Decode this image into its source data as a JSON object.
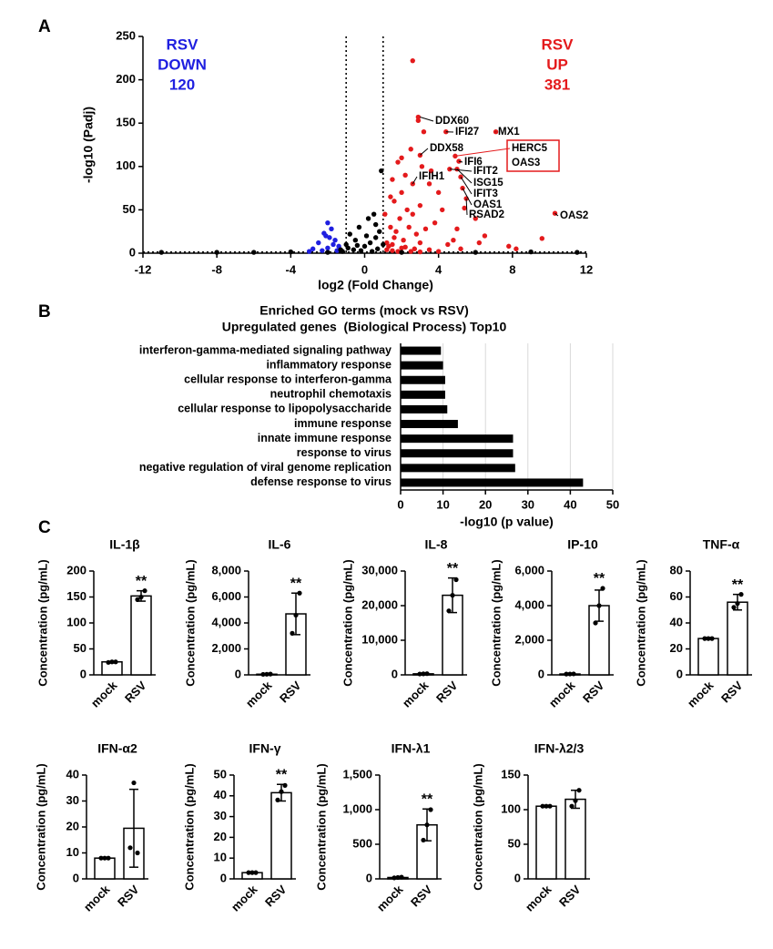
{
  "panel_labels": [
    "A",
    "B",
    "C"
  ],
  "chart_data": [
    {
      "type": "scatter",
      "xlabel": "log2 (Fold Change)",
      "ylabel": "-log10 (Padj)",
      "xlim": [
        -12,
        12
      ],
      "ylim": [
        0,
        250
      ],
      "xticks": [
        -12,
        -8,
        -4,
        0,
        4,
        8,
        12
      ],
      "yticks": [
        0,
        50,
        100,
        150,
        200,
        250
      ],
      "thresholds": {
        "x": [
          -1,
          1
        ],
        "y": 1.3
      },
      "series": [
        {
          "color": "#1f1fe0",
          "x": [
            -2.2,
            -2.0,
            -1.8,
            -2.5,
            -2.8,
            -1.6,
            -1.4,
            -2.0,
            -1.5,
            -1.9,
            -2.3,
            -3.0,
            -2.1,
            -1.7
          ],
          "values": [
            23,
            35,
            28,
            12,
            5,
            15,
            8,
            6,
            3,
            18,
            3,
            2,
            20,
            10
          ]
        },
        {
          "color": "#e41a1c",
          "x": [
            2.6,
            2.9,
            2.9,
            3.2,
            4.4,
            7.1,
            3.0,
            4.9,
            5.1,
            4.6,
            5.0,
            5.2,
            5.3,
            5.5,
            5.4,
            10.3,
            3.1,
            2.5,
            1.8,
            1.5,
            2.2,
            3.5,
            4.0,
            2.0,
            1.6,
            3.0,
            4.2,
            2.6,
            1.9,
            6.0,
            3.8,
            1.4,
            2.4,
            5.0,
            6.5,
            9.6,
            1.6,
            2.1,
            3.0,
            4.5,
            1.3,
            2.0,
            2.7,
            3.5,
            1.5,
            5.2,
            7.8,
            1.2,
            1.7,
            2.8,
            3.3,
            4.8,
            2.3,
            1.1,
            1.4,
            3.6,
            2.0,
            6.2,
            8.2,
            1.8,
            2.5,
            3.0,
            4.0,
            2.6,
            1.2,
            1.5,
            2.2
          ],
          "values": [
            222,
            157,
            153,
            140,
            140,
            140,
            113,
            112,
            106,
            97,
            97,
            88,
            75,
            63,
            52,
            46,
            100,
            120,
            105,
            85,
            90,
            80,
            70,
            70,
            60,
            55,
            50,
            45,
            40,
            40,
            35,
            30,
            30,
            28,
            20,
            17,
            18,
            15,
            12,
            10,
            8,
            6,
            5,
            4,
            3,
            5,
            8,
            12,
            25,
            22,
            28,
            15,
            50,
            45,
            65,
            95,
            110,
            12,
            5,
            2,
            2,
            1.5,
            2,
            80,
            4,
            10,
            7
          ]
        },
        {
          "color": "#000000",
          "x": [
            0.9,
            0.5,
            0.2,
            -0.3,
            0.8,
            -0.8,
            0.6,
            -0.5,
            0.3,
            -1.0,
            0.0,
            0.7,
            -0.6,
            -0.2,
            0.4,
            -1.2,
            1.0,
            -4,
            -8,
            -11,
            6,
            9,
            11.5,
            -6,
            2,
            -2,
            -0.9,
            0.1,
            -0.4,
            0.6,
            -1.3
          ],
          "values": [
            95,
            45,
            40,
            30,
            25,
            22,
            18,
            15,
            12,
            10,
            8,
            5,
            4,
            3,
            2,
            2,
            10,
            1.5,
            1,
            1,
            1,
            1.5,
            1,
            1,
            1,
            1,
            6,
            20,
            9,
            33,
            4
          ]
        }
      ],
      "group_labels": [
        {
          "lines": [
            "RSV",
            "DOWN"
          ],
          "count": 120,
          "color": "#1f1fe0"
        },
        {
          "lines": [
            "RSV",
            "UP"
          ],
          "count": 381,
          "color": "#e41a1c"
        }
      ],
      "gene_labels": [
        {
          "text": "DDX60",
          "x": 3.0,
          "y": 157
        },
        {
          "text": "IFI27",
          "x": 4.4,
          "y": 140
        },
        {
          "text": "MX1",
          "x": 7.1,
          "y": 140
        },
        {
          "text": "DDX58",
          "x": 3.0,
          "y": 113
        },
        {
          "text": "HERC5",
          "x": 4.9,
          "y": 112
        },
        {
          "text": "OAS3",
          "x": 4.9,
          "y": 112
        },
        {
          "text": "IFI6",
          "x": 5.1,
          "y": 106
        },
        {
          "text": "IFIT2",
          "x": 4.6,
          "y": 97
        },
        {
          "text": "ISG15",
          "x": 5.0,
          "y": 97
        },
        {
          "text": "IFIT3",
          "x": 5.2,
          "y": 88
        },
        {
          "text": "OAS1",
          "x": 5.3,
          "y": 75
        },
        {
          "text": "RSAD2",
          "x": 5.5,
          "y": 63
        },
        {
          "text": "OAS2",
          "x": 10.3,
          "y": 46
        },
        {
          "text": "IFIH1",
          "x": 2.6,
          "y": 80
        }
      ]
    },
    {
      "type": "barh",
      "title": [
        "Enriched GO terms (mock vs RSV)",
        "Upregulated genes  (Biological Process) Top10"
      ],
      "xlabel": "-log10 (p value)",
      "color": "#000000",
      "grid": true,
      "categories": [
        "interferon-gamma-mediated signaling pathway",
        "inflammatory response",
        "cellular response to interferon-gamma",
        "neutrophil chemotaxis",
        "cellular response to lipopolysaccharide",
        "immune response",
        "innate immune response",
        "response to virus",
        "negative regulation of viral genome replication",
        "defense response to virus"
      ],
      "values": [
        9.5,
        10,
        10.5,
        10.5,
        11,
        13.5,
        26.5,
        26.5,
        27,
        43
      ],
      "xlim": [
        0,
        50
      ],
      "xticks": [
        0,
        10,
        20,
        30,
        40,
        50
      ]
    },
    {
      "type": "bar",
      "title": "IL-1β",
      "ylabel": "Concentration (pg/mL)",
      "categories": [
        "mock",
        "RSV"
      ],
      "values": [
        25,
        152
      ],
      "error": [
        1,
        10
      ],
      "points": [
        [
          24,
          25,
          25
        ],
        [
          145,
          150,
          162
        ]
      ],
      "significance": [
        null,
        "**"
      ],
      "ylim": [
        0,
        200
      ],
      "yticks": [
        0,
        50,
        100,
        150,
        200
      ]
    },
    {
      "type": "bar",
      "title": "IL-6",
      "ylabel": "Concentration (pg/mL)",
      "categories": [
        "mock",
        "RSV"
      ],
      "values": [
        50,
        4700
      ],
      "error": [
        20,
        1600
      ],
      "points": [
        [
          40,
          50,
          60
        ],
        [
          3200,
          4600,
          6300
        ]
      ],
      "significance": [
        null,
        "**"
      ],
      "ylim": [
        0,
        8000
      ],
      "yticks": [
        0,
        {
          "value": 2000,
          "label": "2,000"
        },
        {
          "value": 4000,
          "label": "4,000"
        },
        {
          "value": 6000,
          "label": "6,000"
        },
        {
          "value": 8000,
          "label": "8,000"
        }
      ]
    },
    {
      "type": "bar",
      "title": "IL-8",
      "ylabel": "Concentration (pg/mL)",
      "categories": [
        "mock",
        "RSV"
      ],
      "values": [
        300,
        23000
      ],
      "error": [
        100,
        5000
      ],
      "points": [
        [
          250,
          300,
          350
        ],
        [
          18500,
          23000,
          27500
        ]
      ],
      "significance": [
        null,
        "**"
      ],
      "ylim": [
        0,
        30000
      ],
      "yticks": [
        0,
        {
          "value": 10000,
          "label": "10,000"
        },
        {
          "value": 20000,
          "label": "20,000"
        },
        {
          "value": 30000,
          "label": "30,000"
        }
      ]
    },
    {
      "type": "bar",
      "title": "IP-10",
      "ylabel": "Concentration (pg/mL)",
      "categories": [
        "mock",
        "RSV"
      ],
      "values": [
        50,
        4000
      ],
      "error": [
        10,
        900
      ],
      "points": [
        [
          45,
          50,
          55
        ],
        [
          3000,
          4000,
          5000
        ]
      ],
      "significance": [
        null,
        "**"
      ],
      "ylim": [
        0,
        6000
      ],
      "yticks": [
        0,
        {
          "value": 2000,
          "label": "2,000"
        },
        {
          "value": 4000,
          "label": "4,000"
        },
        {
          "value": 6000,
          "label": "6,000"
        }
      ]
    },
    {
      "type": "bar",
      "title": "TNF-α",
      "ylabel": "Concentration (pg/mL)",
      "categories": [
        "mock",
        "RSV"
      ],
      "values": [
        28,
        56
      ],
      "error": [
        0.5,
        6
      ],
      "points": [
        [
          28,
          28,
          28
        ],
        [
          52,
          55,
          62
        ]
      ],
      "significance": [
        null,
        "**"
      ],
      "ylim": [
        0,
        80
      ],
      "yticks": [
        0,
        20,
        40,
        60,
        80
      ]
    },
    {
      "type": "bar",
      "title": "IFN-α2",
      "ylabel": "Concentration (pg/mL)",
      "categories": [
        "mock",
        "RSV"
      ],
      "values": [
        8,
        19.5
      ],
      "error": [
        0.3,
        15
      ],
      "points": [
        [
          8,
          8,
          8
        ],
        [
          12,
          37,
          10
        ]
      ],
      "significance": [
        null,
        null
      ],
      "ylim": [
        0,
        40
      ],
      "yticks": [
        0,
        10,
        20,
        30,
        40
      ]
    },
    {
      "type": "bar",
      "title": "IFN-γ",
      "ylabel": "Concentration (pg/mL)",
      "categories": [
        "mock",
        "RSV"
      ],
      "values": [
        3,
        41.5
      ],
      "error": [
        0.2,
        4
      ],
      "points": [
        [
          3,
          3,
          3
        ],
        [
          38,
          42,
          45
        ]
      ],
      "significance": [
        null,
        "**"
      ],
      "ylim": [
        0,
        50
      ],
      "yticks": [
        0,
        10,
        20,
        30,
        40,
        50
      ]
    },
    {
      "type": "bar",
      "title": "IFN-λ1",
      "ylabel": "Concentration (pg/mL)",
      "categories": [
        "mock",
        "RSV"
      ],
      "values": [
        20,
        780
      ],
      "error": [
        5,
        230
      ],
      "points": [
        [
          15,
          20,
          25
        ],
        [
          560,
          780,
          1000
        ]
      ],
      "significance": [
        null,
        "**"
      ],
      "ylim": [
        0,
        1500
      ],
      "yticks": [
        0,
        500,
        {
          "value": 1000,
          "label": "1,000"
        },
        {
          "value": 1500,
          "label": "1,500"
        }
      ]
    },
    {
      "type": "bar",
      "title": "IFN-λ2/3",
      "ylabel": "Concentration (pg/mL)",
      "categories": [
        "mock",
        "RSV"
      ],
      "values": [
        105,
        115
      ],
      "error": [
        0.5,
        13
      ],
      "points": [
        [
          105,
          105,
          105
        ],
        [
          105,
          113,
          128
        ]
      ],
      "significance": [
        null,
        null
      ],
      "ylim": [
        0,
        150
      ],
      "yticks": [
        0,
        50,
        100,
        150
      ]
    }
  ]
}
